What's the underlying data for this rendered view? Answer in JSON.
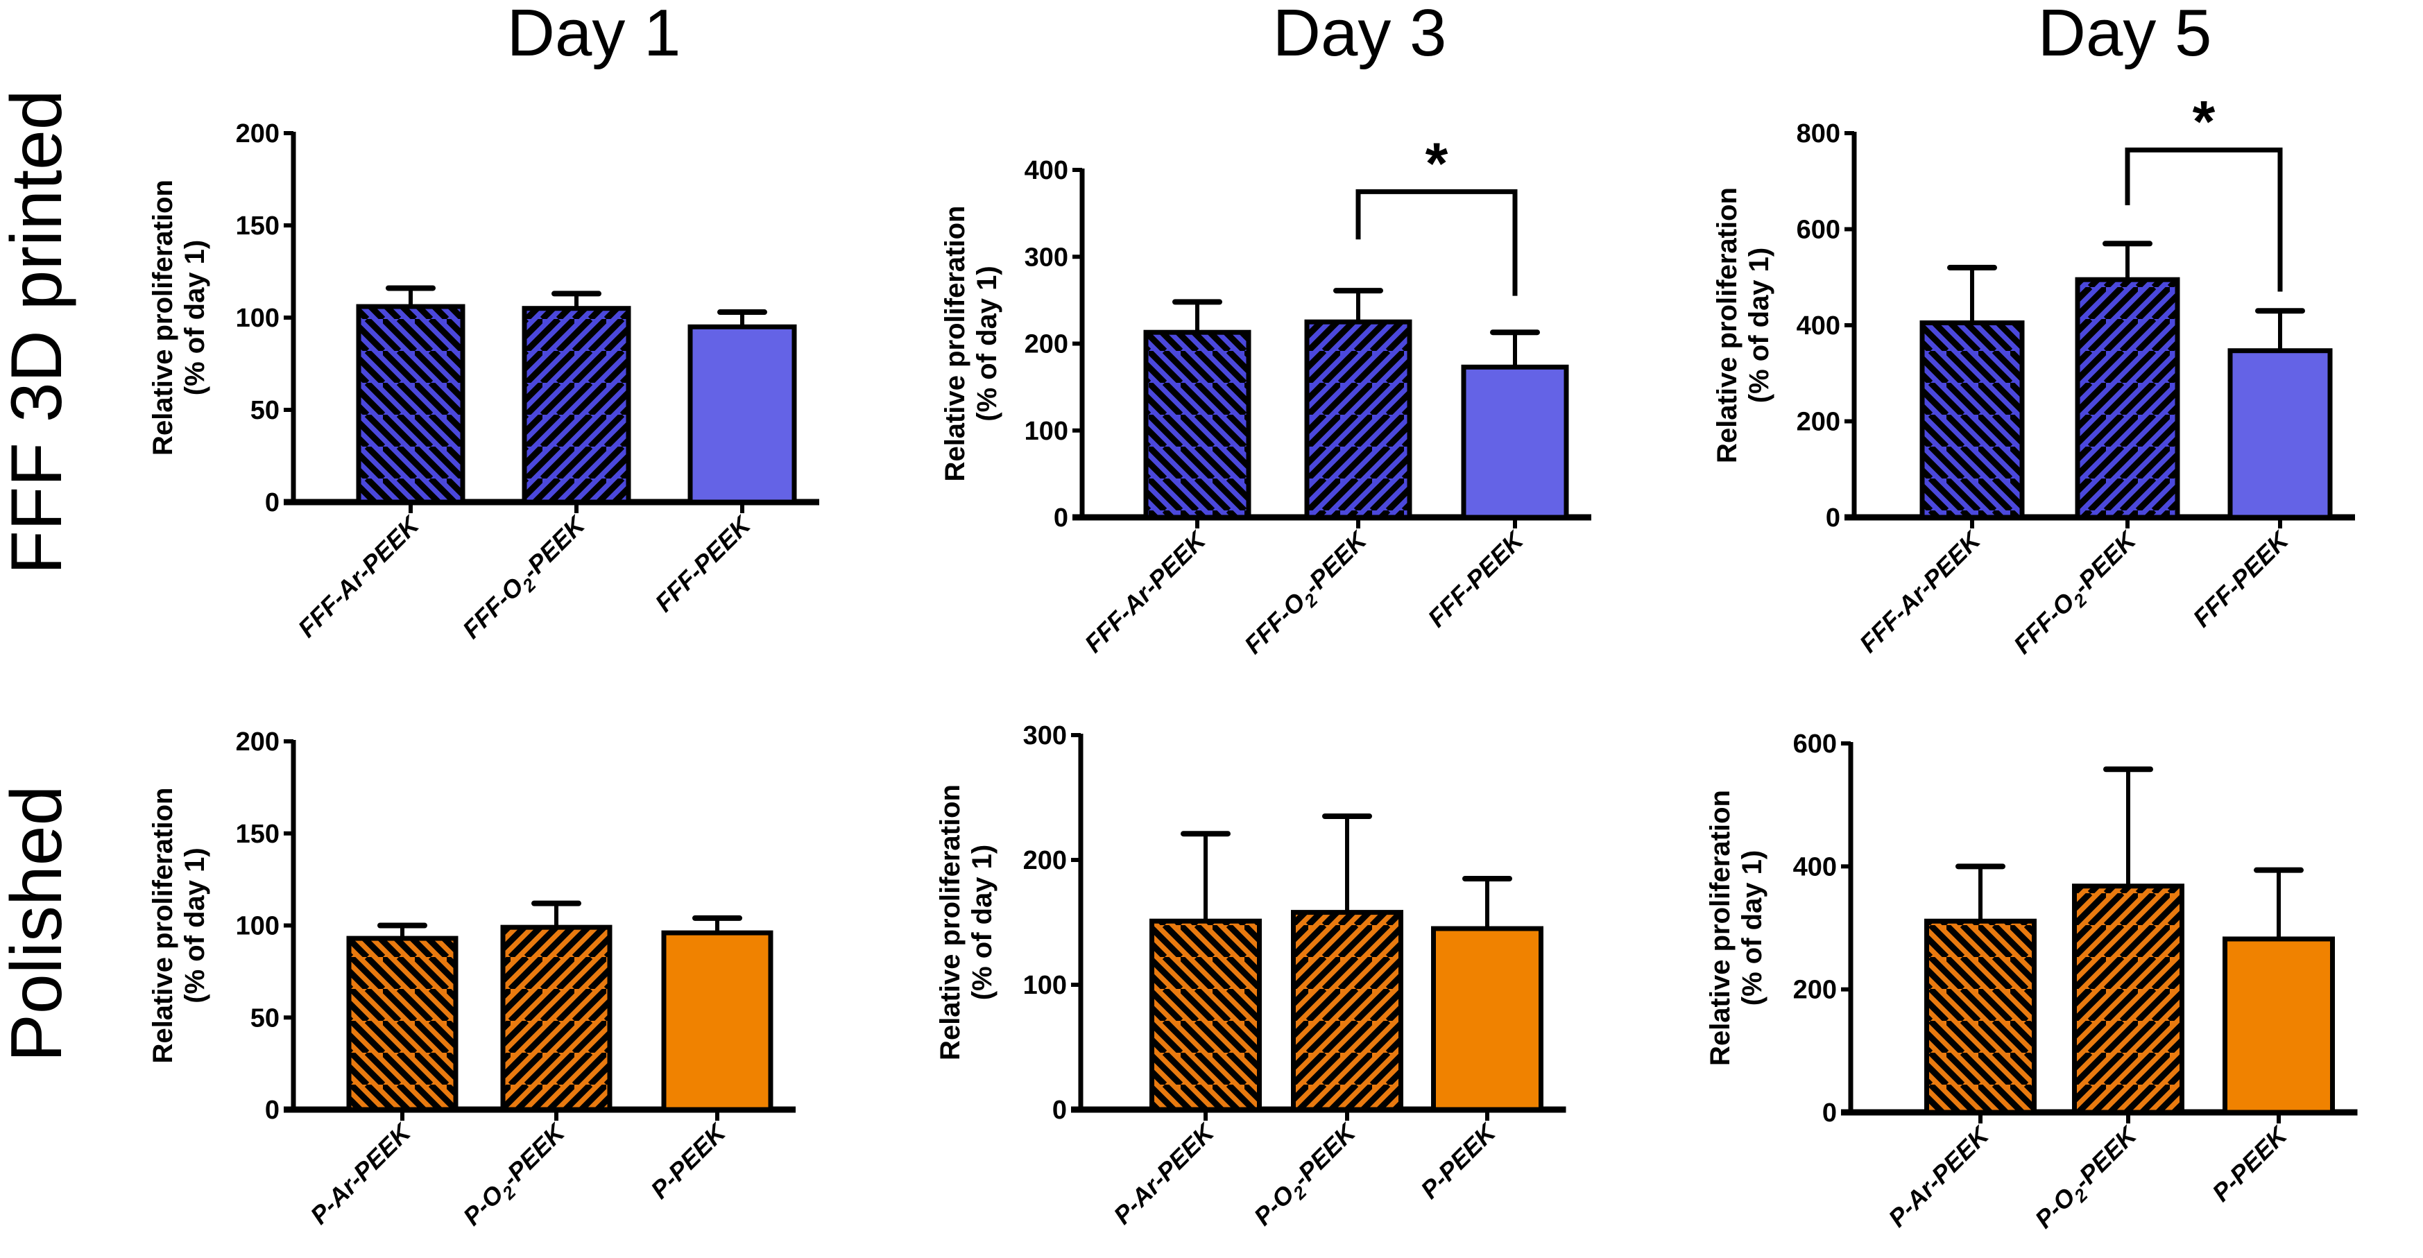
{
  "figure": {
    "column_titles": [
      "Day 1",
      "Day 3",
      "Day 5"
    ],
    "row_labels": [
      "FFF 3D printed",
      "Polished"
    ],
    "colors": {
      "fff_hatched": "#4b48dc",
      "fff_solid": "#6463e6",
      "polished_hatched": "#e97a0f",
      "polished_solid": "#f08200",
      "stroke": "#000000"
    }
  },
  "chart_data": [
    {
      "type": "bar",
      "row": "FFF 3D printed",
      "title": "Day 1",
      "ylabel": "Relative proliferation (% of day 1)",
      "ylabel_lines": [
        "Relative proliferation",
        "(% of day 1)"
      ],
      "xlabel": "",
      "ylim": [
        0,
        200
      ],
      "yticks": [
        0,
        50,
        100,
        150,
        200
      ],
      "grid": false,
      "categories": [
        {
          "prefix": "FFF-Ar-PEEK",
          "sub": "",
          "suffix": ""
        },
        {
          "prefix": "FFF-O",
          "sub": "2",
          "suffix": "-PEEK"
        },
        {
          "prefix": "FFF-PEEK",
          "sub": "",
          "suffix": ""
        }
      ],
      "category_names": [
        "FFF-Ar-PEEK",
        "FFF-O2-PEEK",
        "FFF-PEEK"
      ],
      "values": [
        106,
        105,
        95
      ],
      "error_upper": [
        10,
        8,
        8
      ],
      "patterns": [
        "hatch-back",
        "hatch-forward",
        "solid"
      ],
      "palette": "fff",
      "significance": []
    },
    {
      "type": "bar",
      "row": "FFF 3D printed",
      "title": "Day 3",
      "ylabel": "Relative proliferation (% of day 1)",
      "ylabel_lines": [
        "Relative proliferation",
        "(% of day 1)"
      ],
      "xlabel": "",
      "ylim": [
        0,
        400
      ],
      "yticks": [
        0,
        100,
        200,
        300,
        400
      ],
      "grid": false,
      "categories": [
        {
          "prefix": "FFF-Ar-PEEK",
          "sub": "",
          "suffix": ""
        },
        {
          "prefix": "FFF-O",
          "sub": "2",
          "suffix": "-PEEK"
        },
        {
          "prefix": "FFF-PEEK",
          "sub": "",
          "suffix": ""
        }
      ],
      "category_names": [
        "FFF-Ar-PEEK",
        "FFF-O2-PEEK",
        "FFF-PEEK"
      ],
      "values": [
        213,
        225,
        173
      ],
      "error_upper": [
        35,
        36,
        40
      ],
      "patterns": [
        "hatch-back",
        "hatch-forward",
        "solid"
      ],
      "palette": "fff",
      "significance": [
        {
          "from": 1,
          "to": 2,
          "label": "*",
          "bracket_y": 375,
          "left_end": 320,
          "right_end": 255
        }
      ]
    },
    {
      "type": "bar",
      "row": "FFF 3D printed",
      "title": "Day 5",
      "ylabel": "Relative proliferation (% of day 1)",
      "ylabel_lines": [
        "Relative proliferation",
        "(% of day 1)"
      ],
      "xlabel": "",
      "ylim": [
        0,
        800
      ],
      "yticks": [
        0,
        200,
        400,
        600,
        800
      ],
      "grid": false,
      "categories": [
        {
          "prefix": "FFF-Ar-PEEK",
          "sub": "",
          "suffix": ""
        },
        {
          "prefix": "FFF-O",
          "sub": "2",
          "suffix": "-PEEK"
        },
        {
          "prefix": "FFF-PEEK",
          "sub": "",
          "suffix": ""
        }
      ],
      "category_names": [
        "FFF-Ar-PEEK",
        "FFF-O2-PEEK",
        "FFF-PEEK"
      ],
      "values": [
        405,
        495,
        347
      ],
      "error_upper": [
        115,
        75,
        83
      ],
      "patterns": [
        "hatch-back",
        "hatch-forward",
        "solid"
      ],
      "palette": "fff",
      "significance": [
        {
          "from": 1,
          "to": 2,
          "label": "*",
          "bracket_y": 765,
          "left_end": 650,
          "right_end": 470
        }
      ]
    },
    {
      "type": "bar",
      "row": "Polished",
      "title": "Day 1",
      "ylabel": "Relative proliferation (% of day 1)",
      "ylabel_lines": [
        "Relative proliferation",
        "(% of day 1)"
      ],
      "xlabel": "",
      "ylim": [
        0,
        200
      ],
      "yticks": [
        0,
        50,
        100,
        150,
        200
      ],
      "grid": false,
      "categories": [
        {
          "prefix": "P-Ar-PEEK",
          "sub": "",
          "suffix": ""
        },
        {
          "prefix": "P-O",
          "sub": "2",
          "suffix": "-PEEK"
        },
        {
          "prefix": "P-PEEK",
          "sub": "",
          "suffix": ""
        }
      ],
      "category_names": [
        "P-Ar-PEEK",
        "P-O2-PEEK",
        "P-PEEK"
      ],
      "values": [
        93,
        99,
        96
      ],
      "error_upper": [
        7,
        13,
        8
      ],
      "patterns": [
        "hatch-back",
        "hatch-forward",
        "solid"
      ],
      "palette": "polished",
      "significance": []
    },
    {
      "type": "bar",
      "row": "Polished",
      "title": "Day 3",
      "ylabel": "Relative proliferation (% of day 1)",
      "ylabel_lines": [
        "Relative proliferation",
        "(% of day 1)"
      ],
      "xlabel": "",
      "ylim": [
        0,
        300
      ],
      "yticks": [
        0,
        100,
        200,
        300
      ],
      "grid": false,
      "categories": [
        {
          "prefix": "P-Ar-PEEK",
          "sub": "",
          "suffix": ""
        },
        {
          "prefix": "P-O",
          "sub": "2",
          "suffix": "-PEEK"
        },
        {
          "prefix": "P-PEEK",
          "sub": "",
          "suffix": ""
        }
      ],
      "category_names": [
        "P-Ar-PEEK",
        "P-O2-PEEK",
        "P-PEEK"
      ],
      "values": [
        151,
        158,
        145
      ],
      "error_upper": [
        70,
        77,
        40
      ],
      "patterns": [
        "hatch-back",
        "hatch-forward",
        "solid"
      ],
      "palette": "polished",
      "significance": []
    },
    {
      "type": "bar",
      "row": "Polished",
      "title": "Day 5",
      "ylabel": "Relative proliferation (% of day 1)",
      "ylabel_lines": [
        "Relative proliferation",
        "(% of day 1)"
      ],
      "xlabel": "",
      "ylim": [
        0,
        600
      ],
      "yticks": [
        0,
        200,
        400,
        600
      ],
      "grid": false,
      "categories": [
        {
          "prefix": "P-Ar-PEEK",
          "sub": "",
          "suffix": ""
        },
        {
          "prefix": "P-O",
          "sub": "2",
          "suffix": "-PEEK"
        },
        {
          "prefix": "P-PEEK",
          "sub": "",
          "suffix": ""
        }
      ],
      "category_names": [
        "P-Ar-PEEK",
        "P-O2-PEEK",
        "P-PEEK"
      ],
      "values": [
        311,
        368,
        282
      ],
      "error_upper": [
        89,
        190,
        112
      ],
      "patterns": [
        "hatch-back",
        "hatch-forward",
        "solid"
      ],
      "palette": "polished",
      "significance": []
    }
  ]
}
